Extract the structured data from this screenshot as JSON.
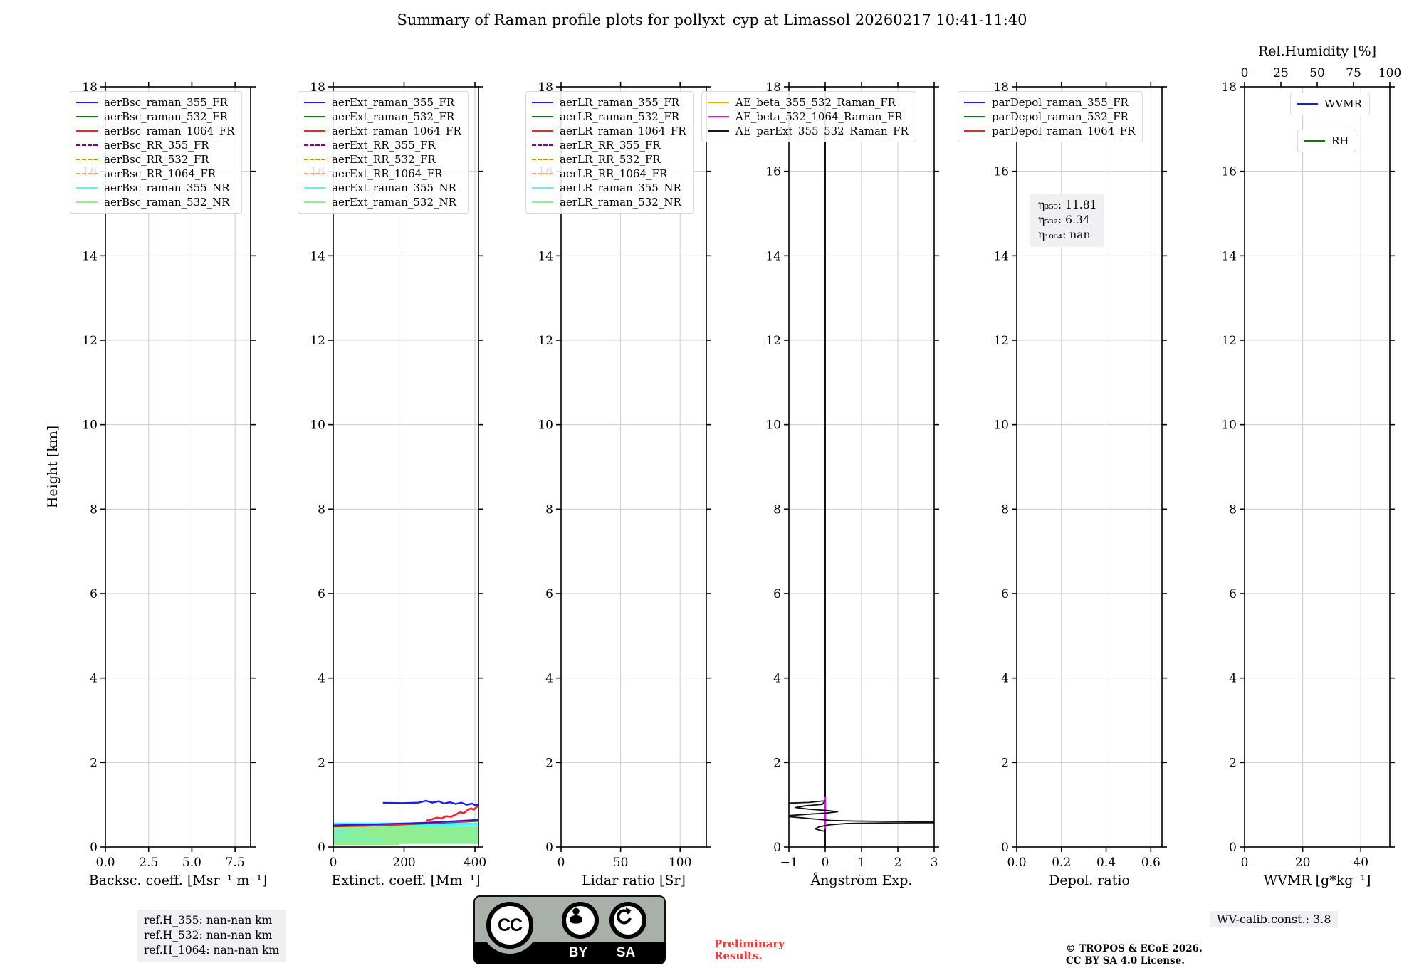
{
  "title": "Summary of Raman profile plots for pollyxt_cyp at Limassol 20260217 10:41-11:40",
  "ylabel": "Height [km]",
  "footer": {
    "ref_lines": [
      "ref.H_355: nan-nan km",
      "ref.H_532: nan-nan km",
      "ref.H_1064: nan-nan km"
    ],
    "preliminary": [
      "Preliminary",
      "Results."
    ],
    "copyright": [
      "© TROPOS & ECoE 2026.",
      "CC BY SA 4.0 License."
    ],
    "wv_calib": "WV-calib.const.: 3.8",
    "cc": {
      "cc": "CC",
      "by": "BY",
      "sa": "SA"
    }
  },
  "chart_data": {
    "type": "line",
    "title": "Summary of Raman profile plots for pollyxt_cyp at Limassol 20260217 10:41-11:40",
    "ylabel": "Height [km]",
    "ylim": [
      0,
      18
    ],
    "yticks": [
      0,
      2,
      4,
      6,
      8,
      10,
      12,
      14,
      16,
      18
    ],
    "grid": true,
    "panels": [
      {
        "name": "backscatter",
        "xlabel": "Backsc. coeff. [Msr⁻¹ m⁻¹]",
        "xlim": [
          0,
          8.4
        ],
        "xticks": [
          0,
          2.5,
          5,
          7.5
        ],
        "xtick_labels": [
          "0.0",
          "2.5",
          "5.0",
          "7.5"
        ],
        "legend": [
          {
            "label": "aerBsc_raman_355_FR",
            "color": "#1a1aff",
            "dash": false
          },
          {
            "label": "aerBsc_raman_532_FR",
            "color": "#008000",
            "dash": false
          },
          {
            "label": "aerBsc_raman_1064_FR",
            "color": "#ff2020",
            "dash": false
          },
          {
            "label": "aerBsc_RR_355_FR",
            "color": "#800080",
            "dash": true
          },
          {
            "label": "aerBsc_RR_532_FR",
            "color": "#a6a000",
            "dash": true
          },
          {
            "label": "aerBsc_RR_1064_FR",
            "color": "#ffa07a",
            "dash": true
          },
          {
            "label": "aerBsc_raman_355_NR",
            "color": "#4dffff",
            "dash": false
          },
          {
            "label": "aerBsc_raman_532_NR",
            "color": "#90ee90",
            "dash": false
          }
        ],
        "series": [],
        "hsegments": []
      },
      {
        "name": "extinction",
        "xlabel": "Extinct. coeff. [Mm⁻¹]",
        "xlim": [
          0,
          410
        ],
        "xticks": [
          0,
          200,
          400
        ],
        "xtick_labels": [
          "0",
          "200",
          "400"
        ],
        "legend": [
          {
            "label": "aerExt_raman_355_FR",
            "color": "#1a1aff",
            "dash": false
          },
          {
            "label": "aerExt_raman_532_FR",
            "color": "#008000",
            "dash": false
          },
          {
            "label": "aerExt_raman_1064_FR",
            "color": "#ff2020",
            "dash": false
          },
          {
            "label": "aerExt_RR_355_FR",
            "color": "#800080",
            "dash": true
          },
          {
            "label": "aerExt_RR_532_FR",
            "color": "#a6a000",
            "dash": true
          },
          {
            "label": "aerExt_RR_1064_FR",
            "color": "#ffa07a",
            "dash": true
          },
          {
            "label": "aerExt_raman_355_NR",
            "color": "#4dffff",
            "dash": false
          },
          {
            "label": "aerExt_raman_532_NR",
            "color": "#90ee90",
            "dash": false
          }
        ],
        "series": [
          {
            "name": "aerExt_raman_355_FR",
            "color": "#1a1aff",
            "width": 2.4,
            "points": [
              [
                140,
                1.045
              ],
              [
                195,
                1.04
              ],
              [
                240,
                1.05
              ],
              [
                262,
                1.095
              ],
              [
                280,
                1.05
              ],
              [
                298,
                1.085
              ],
              [
                312,
                1.03
              ],
              [
                330,
                1.06
              ],
              [
                345,
                1.02
              ],
              [
                362,
                1.05
              ],
              [
                377,
                1.0
              ],
              [
                392,
                1.03
              ],
              [
                402,
                0.985
              ],
              [
                410,
                1.005
              ]
            ]
          },
          {
            "name": "aerExt_raman_1064_FR",
            "color": "#ff2020",
            "width": 2.6,
            "points": [
              [
                263,
                0.625
              ],
              [
                278,
                0.655
              ],
              [
                292,
                0.695
              ],
              [
                306,
                0.675
              ],
              [
                318,
                0.73
              ],
              [
                332,
                0.715
              ],
              [
                347,
                0.775
              ],
              [
                358,
                0.825
              ],
              [
                368,
                0.8
              ],
              [
                379,
                0.875
              ],
              [
                389,
                0.915
              ],
              [
                397,
                0.885
              ],
              [
                404,
                0.945
              ],
              [
                410,
                0.965
              ]
            ]
          },
          {
            "name": "aerExt_raman_532_FR_low",
            "color": "#008000",
            "width": 2.2,
            "points": [
              [
                0,
                0.487
              ],
              [
                100,
                0.505
              ],
              [
                200,
                0.535
              ],
              [
                300,
                0.572
              ],
              [
                410,
                0.617
              ]
            ]
          },
          {
            "name": "aerExt_raman_1064_FR_low",
            "color": "#ff2020",
            "width": 3,
            "points": [
              [
                0,
                0.5
              ],
              [
                100,
                0.518
              ],
              [
                200,
                0.548
              ],
              [
                300,
                0.585
              ],
              [
                410,
                0.63
              ]
            ]
          },
          {
            "name": "aerExt_raman_355_FR_low",
            "color": "#1a1aff",
            "width": 2,
            "points": [
              [
                0,
                0.515
              ],
              [
                120,
                0.54
              ],
              [
                260,
                0.575
              ],
              [
                410,
                0.648
              ]
            ]
          }
        ],
        "hsegments": [
          {
            "name": "aerExt_raman_355_NR",
            "color": "#40ffff",
            "width": 2.2,
            "segs": [
              [
                0.56,
                0,
                410
              ],
              [
                0.53,
                30,
                410
              ],
              [
                0.505,
                0,
                350
              ],
              [
                0.48,
                15,
                410
              ],
              [
                0.455,
                0,
                410
              ],
              [
                0.43,
                55,
                395
              ],
              [
                0.405,
                0,
                410
              ],
              [
                0.38,
                25,
                410
              ],
              [
                0.355,
                0,
                375
              ],
              [
                0.33,
                0,
                410
              ],
              [
                0.305,
                70,
                410
              ],
              [
                0.28,
                0,
                400
              ],
              [
                0.255,
                0,
                410
              ],
              [
                0.23,
                45,
                410
              ],
              [
                0.205,
                0,
                385
              ],
              [
                0.18,
                0,
                410
              ],
              [
                0.155,
                35,
                410
              ],
              [
                0.13,
                0,
                410
              ]
            ]
          },
          {
            "name": "aerExt_raman_532_NR",
            "color": "#90ee90",
            "width": 2.2,
            "segs": [
              [
                0.5,
                0,
                190
              ],
              [
                0.47,
                0,
                410
              ],
              [
                0.44,
                25,
                410
              ],
              [
                0.415,
                0,
                330
              ],
              [
                0.39,
                0,
                410
              ],
              [
                0.365,
                90,
                410
              ],
              [
                0.34,
                0,
                410
              ],
              [
                0.315,
                0,
                240
              ],
              [
                0.29,
                35,
                410
              ],
              [
                0.265,
                0,
                410
              ],
              [
                0.24,
                0,
                300
              ],
              [
                0.215,
                0,
                410
              ],
              [
                0.19,
                140,
                410
              ],
              [
                0.165,
                0,
                410
              ],
              [
                0.14,
                0,
                255
              ],
              [
                0.115,
                0,
                410
              ],
              [
                0.09,
                0,
                410
              ],
              [
                0.065,
                0,
                185
              ]
            ]
          }
        ]
      },
      {
        "name": "lidar-ratio",
        "xlabel": "Lidar ratio [Sr]",
        "xlim": [
          0,
          122
        ],
        "xticks": [
          0,
          50,
          100
        ],
        "xtick_labels": [
          "0",
          "50",
          "100"
        ],
        "legend": [
          {
            "label": "aerLR_raman_355_FR",
            "color": "#1a1aff",
            "dash": false
          },
          {
            "label": "aerLR_raman_532_FR",
            "color": "#008000",
            "dash": false
          },
          {
            "label": "aerLR_raman_1064_FR",
            "color": "#ff2020",
            "dash": false
          },
          {
            "label": "aerLR_RR_355_FR",
            "color": "#800080",
            "dash": true
          },
          {
            "label": "aerLR_RR_532_FR",
            "color": "#a6a000",
            "dash": true
          },
          {
            "label": "aerLR_RR_1064_FR",
            "color": "#ffa07a",
            "dash": true
          },
          {
            "label": "aerLR_raman_355_NR",
            "color": "#4dffff",
            "dash": false
          },
          {
            "label": "aerLR_raman_532_NR",
            "color": "#90ee90",
            "dash": false
          }
        ],
        "series": [],
        "hsegments": []
      },
      {
        "name": "angstrom",
        "xlabel": "Ångström Exp.",
        "xlim": [
          -1,
          3
        ],
        "xticks": [
          -1,
          0,
          1,
          2,
          3
        ],
        "xtick_labels": [
          "−1",
          "0",
          "1",
          "2",
          "3"
        ],
        "legend": [
          {
            "label": "AE_beta_355_532_Raman_FR",
            "color": "#ffa500",
            "dash": false
          },
          {
            "label": "AE_beta_532_1064_Raman_FR",
            "color": "#ff00ff",
            "dash": false
          },
          {
            "label": "AE_parExt_355_532_Raman_FR",
            "color": "#1a1a1a",
            "dash": false
          }
        ],
        "series": [
          {
            "name": "AE_vline",
            "color": "#111111",
            "width": 2,
            "points": [
              [
                0,
                0
              ],
              [
                0,
                18
              ]
            ]
          },
          {
            "name": "AE_beta_532_1064_Raman_FR",
            "color": "#ff00ff",
            "width": 2.6,
            "points": [
              [
                0,
                0.42
              ],
              [
                0,
                1.18
              ]
            ]
          },
          {
            "name": "AE_parExt_355_532_Raman_FR",
            "color": "#111111",
            "width": 1.8,
            "points": [
              [
                -1,
                1.04
              ],
              [
                -0.45,
                1.055
              ],
              [
                -0.12,
                1.085
              ],
              [
                0,
                1.09
              ],
              [
                -0.08,
                1.01
              ],
              [
                -0.55,
                0.975
              ],
              [
                -0.82,
                0.935
              ],
              [
                -0.45,
                0.895
              ],
              [
                0.05,
                0.865
              ],
              [
                0.34,
                0.835
              ],
              [
                0.05,
                0.805
              ],
              [
                -0.5,
                0.775
              ],
              [
                -1,
                0.745
              ],
              [
                -1,
                0.72
              ],
              [
                -0.45,
                0.675
              ],
              [
                0.15,
                0.63
              ],
              [
                0.8,
                0.615
              ],
              [
                1.8,
                0.607
              ],
              [
                3,
                0.602
              ],
              [
                3,
                0.576
              ],
              [
                1.6,
                0.572
              ],
              [
                0.6,
                0.558
              ],
              [
                0.1,
                0.525
              ],
              [
                -0.18,
                0.475
              ],
              [
                -0.27,
                0.43
              ],
              [
                -0.12,
                0.39
              ],
              [
                0,
                0.37
              ]
            ]
          }
        ],
        "hsegments": []
      },
      {
        "name": "depol",
        "xlabel": "Depol. ratio",
        "xlim": [
          0,
          0.65
        ],
        "xticks": [
          0,
          0.2,
          0.4,
          0.6
        ],
        "xtick_labels": [
          "0.0",
          "0.2",
          "0.4",
          "0.6"
        ],
        "legend": [
          {
            "label": "parDepol_raman_355_FR",
            "color": "#1a1aff",
            "dash": false
          },
          {
            "label": "parDepol_raman_532_FR",
            "color": "#008000",
            "dash": false
          },
          {
            "label": "parDepol_raman_1064_FR",
            "color": "#ff2020",
            "dash": false
          }
        ],
        "annotation": {
          "lines": [
            "η₃₅₅: 11.81",
            "η₅₃₂: 6.34",
            "η₁₀₆₄: nan"
          ]
        },
        "series": [],
        "hsegments": []
      },
      {
        "name": "wvmr",
        "xlabel": "WVMR [g*kg⁻¹]",
        "xlim": [
          0,
          50
        ],
        "xticks": [
          0,
          20,
          40
        ],
        "xtick_labels": [
          "0",
          "20",
          "40"
        ],
        "top_axis": {
          "label": "Rel.Humidity [%]",
          "lim": [
            0,
            100
          ],
          "ticks": [
            0,
            25,
            50,
            75,
            100
          ],
          "tick_labels": [
            "0",
            "25",
            "50",
            "75",
            "100"
          ]
        },
        "legend": [
          {
            "label": "WVMR",
            "color": "#1a1aff",
            "dash": false
          },
          {
            "label": "RH",
            "color": "#008000",
            "dash": false
          }
        ],
        "series": [],
        "hsegments": []
      }
    ]
  }
}
